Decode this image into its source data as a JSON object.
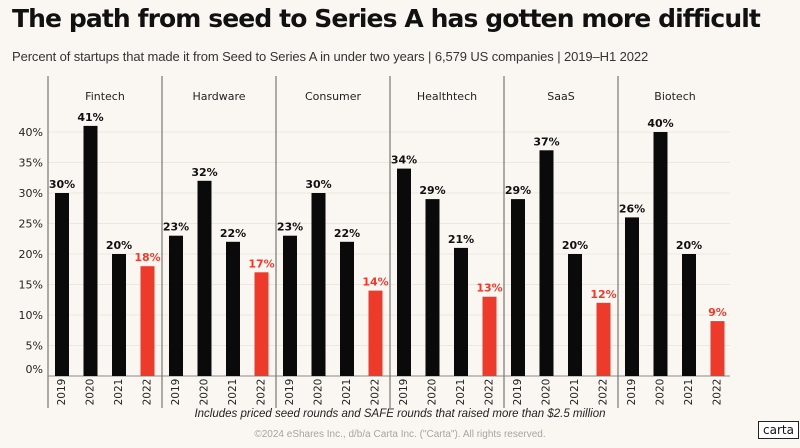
{
  "header": {
    "title": "The path from seed to Series A has gotten more difficult",
    "subtitle": "Percent of startups that made it from Seed to Series A in under two years | 6,579 US companies | 2019–H1 2022"
  },
  "footer": {
    "note": "Includes priced seed rounds and SAFE rounds that raised more than $2.5 million",
    "copyright": "©2024 eShares Inc., d/b/a Carta Inc. (\"Carta\"). All rights reserved.",
    "logo": "carta"
  },
  "colors": {
    "bar_default": "#0a0a0a",
    "bar_highlight": "#ee3a2b",
    "label_highlight": "#ee3a2b",
    "gridline": "#ece8e1",
    "divider": "#7a7772",
    "background": "#faf7f2"
  },
  "chart_data": {
    "type": "bar",
    "title": "The path from seed to Series A has gotten more difficult",
    "subtitle": "Percent of startups that made it from Seed to Series A in under two years | 6,579 US companies | 2019–H1 2022",
    "xlabel": "",
    "ylabel": "",
    "ylim": [
      0,
      40
    ],
    "yticks": [
      "0%",
      "5%",
      "10%",
      "15%",
      "20%",
      "25%",
      "30%",
      "35%",
      "40%"
    ],
    "ytick_values": [
      0,
      5,
      10,
      15,
      20,
      25,
      30,
      35,
      40
    ],
    "grid": true,
    "categories": [
      "2019",
      "2020",
      "2021",
      "2022"
    ],
    "highlight_category": "2022",
    "panels": [
      {
        "name": "Fintech",
        "values": [
          30,
          41,
          20,
          18
        ],
        "labels": [
          "30%",
          "41%",
          "20%",
          "18%"
        ]
      },
      {
        "name": "Hardware",
        "values": [
          23,
          32,
          22,
          17
        ],
        "labels": [
          "23%",
          "32%",
          "22%",
          "17%"
        ]
      },
      {
        "name": "Consumer",
        "values": [
          23,
          30,
          22,
          14
        ],
        "labels": [
          "23%",
          "30%",
          "22%",
          "14%"
        ]
      },
      {
        "name": "Healthtech",
        "values": [
          34,
          29,
          21,
          13
        ],
        "labels": [
          "34%",
          "29%",
          "21%",
          "13%"
        ]
      },
      {
        "name": "SaaS",
        "values": [
          29,
          37,
          20,
          12
        ],
        "labels": [
          "29%",
          "37%",
          "20%",
          "12%"
        ]
      },
      {
        "name": "Biotech",
        "values": [
          26,
          40,
          20,
          9
        ],
        "labels": [
          "26%",
          "40%",
          "20%",
          "9%"
        ]
      }
    ],
    "note": "Includes priced seed rounds and SAFE rounds that raised more than $2.5 million"
  }
}
